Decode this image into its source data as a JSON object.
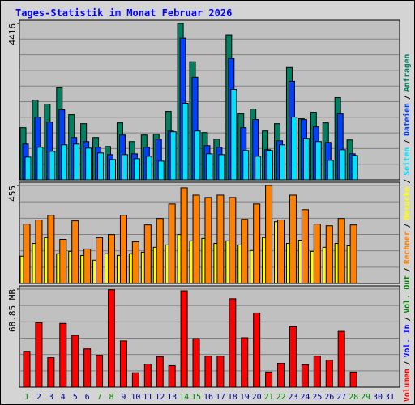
{
  "chart_data": [
    {
      "type": "bar",
      "title": "Tages-Statistik im Monat Februar 2026",
      "ylim": [
        0,
        4416
      ],
      "yticks": [
        4416
      ],
      "series": [
        {
          "name": "Anfragen",
          "color": "#008060",
          "values": [
            1472,
            2254,
            2139,
            2599,
            1840,
            1587,
            1196,
            943,
            1610,
            1081,
            1265,
            1288,
            1932,
            4416,
            3335,
            1334,
            1150,
            4094,
            1863,
            2001,
            1380,
            1587,
            3174,
            1725,
            1909,
            1610,
            2323,
            1127,
            null,
            null,
            null
          ]
        },
        {
          "name": "Dateien",
          "color": "#0040ff",
          "values": [
            1012,
            1771,
            1633,
            1978,
            1196,
            1081,
            920,
            713,
            1265,
            736,
            920,
            1150,
            1380,
            4002,
            2898,
            966,
            920,
            3427,
            1472,
            1702,
            851,
            1104,
            2783,
            1702,
            1495,
            1058,
            1863,
            736,
            null,
            null,
            null
          ]
        },
        {
          "name": "Seiten",
          "color": "#00e0ff",
          "values": [
            644,
            920,
            805,
            989,
            1012,
            897,
            759,
            575,
            713,
            598,
            667,
            529,
            1357,
            2162,
            1380,
            736,
            713,
            2553,
            828,
            667,
            828,
            989,
            1771,
            1173,
            1081,
            552,
            851,
            690,
            null,
            null,
            null
          ]
        }
      ]
    },
    {
      "type": "bar",
      "ylim": [
        0,
        455
      ],
      "yticks": [
        455
      ],
      "series": [
        {
          "name": "Besuche",
          "color": "#ffff00",
          "values": [
            127,
            186,
            213,
            138,
            149,
            130,
            108,
            138,
            130,
            138,
            145,
            168,
            179,
            227,
            198,
            209,
            186,
            198,
            179,
            153,
            213,
            287,
            186,
            201,
            149,
            168,
            186,
            175,
            null,
            null,
            null
          ]
        },
        {
          "name": "Rechner",
          "color": "#ff8000",
          "values": [
            276,
            295,
            317,
            205,
            291,
            160,
            213,
            227,
            317,
            194,
            272,
            302,
            369,
            444,
            410,
            399,
            410,
            399,
            298,
            369,
            455,
            295,
            410,
            343,
            276,
            268,
            302,
            272,
            null,
            null,
            null
          ]
        }
      ]
    },
    {
      "type": "bar",
      "ylim": [
        0,
        68.85
      ],
      "yticks": [
        {
          "value": 68.85,
          "label": "68.85 MB"
        }
      ],
      "categories": [
        "1",
        "2",
        "3",
        "4",
        "5",
        "6",
        "7",
        "8",
        "9",
        "10",
        "11",
        "12",
        "13",
        "14",
        "15",
        "16",
        "17",
        "18",
        "19",
        "20",
        "21",
        "22",
        "23",
        "24",
        "25",
        "26",
        "27",
        "28",
        "29",
        "30",
        "31"
      ],
      "category_colors": [
        "#008000",
        "#00008b",
        "#00008b",
        "#00008b",
        "#00008b",
        "#00008b",
        "#008000",
        "#008000",
        "#00008b",
        "#00008b",
        "#00008b",
        "#00008b",
        "#00008b",
        "#008000",
        "#008000",
        "#00008b",
        "#00008b",
        "#00008b",
        "#00008b",
        "#00008b",
        "#008000",
        "#008000",
        "#00008b",
        "#00008b",
        "#00008b",
        "#00008b",
        "#00008b",
        "#008000",
        "#008000",
        "#00008b",
        "#00008b"
      ],
      "series": [
        {
          "name": "Vol. Out",
          "color": "#008000",
          "values": [
            null,
            null,
            null,
            null,
            null,
            null,
            null,
            null,
            null,
            null,
            null,
            null,
            null,
            null,
            null,
            null,
            null,
            null,
            null,
            null,
            null,
            null,
            null,
            null,
            null,
            null,
            null,
            null,
            null,
            null,
            null
          ]
        },
        {
          "name": "Vol. In",
          "color": "#0000ff",
          "values": [
            null,
            null,
            null,
            null,
            null,
            null,
            null,
            null,
            null,
            null,
            null,
            null,
            null,
            null,
            null,
            null,
            null,
            null,
            null,
            null,
            null,
            null,
            null,
            null,
            null,
            null,
            null,
            null,
            null,
            null,
            null
          ]
        },
        {
          "name": "Volumen",
          "color": "#ff0000",
          "values": [
            25.2,
            45.3,
            20.7,
            44.8,
            36.4,
            26.9,
            22.4,
            68.4,
            32.5,
            10.1,
            16.2,
            21.3,
            15.1,
            67.7,
            34.1,
            21.8,
            21.8,
            62.1,
            34.7,
            52.1,
            10.6,
            16.8,
            42.5,
            15.7,
            21.8,
            19.0,
            39.2,
            10.6,
            null,
            null,
            null
          ]
        }
      ]
    }
  ],
  "legend_separator": "/"
}
